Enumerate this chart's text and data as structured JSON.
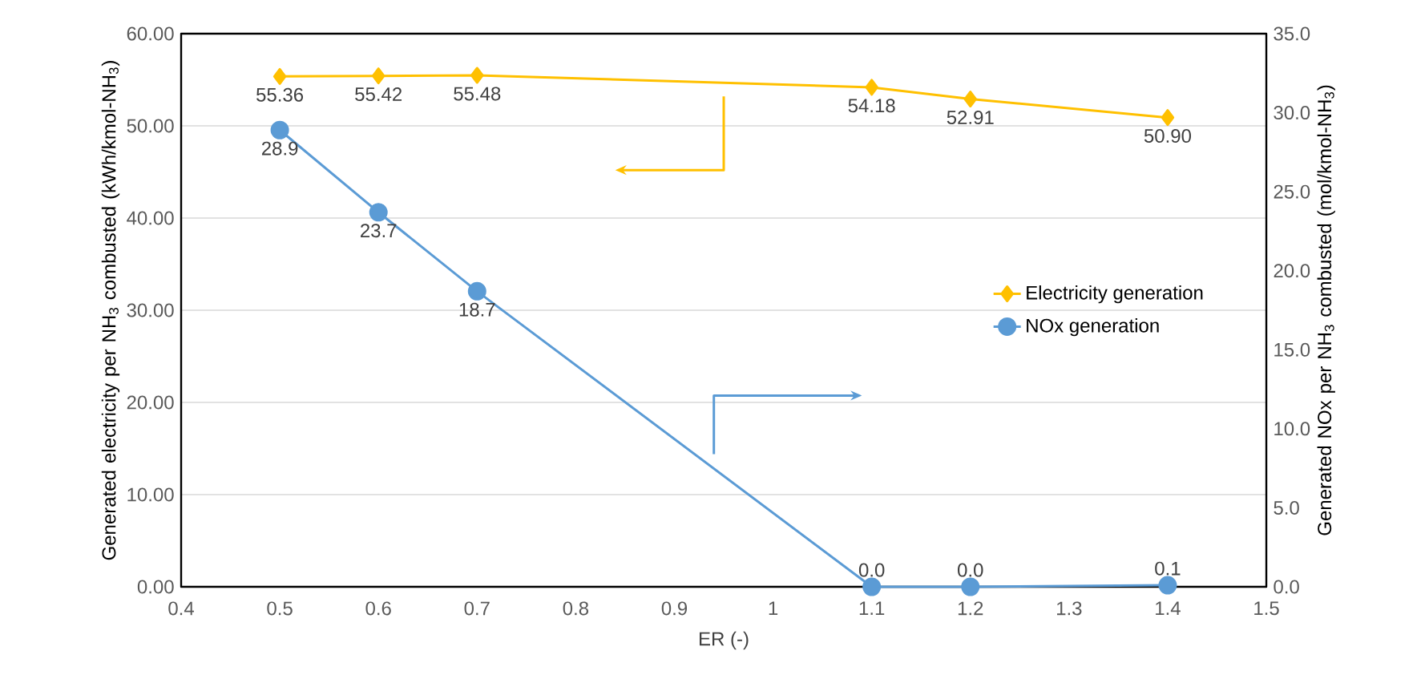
{
  "chart_data": {
    "type": "line",
    "xlabel": "ER (-)",
    "ylabel": "Generated electricity per NH$_{3}$ combusted (kWh/kmol-NH$_{3}$)",
    "y2label": "Generated NOx per NH$_{3}$ combusted (mol/kmol-NH$_{3}$)",
    "x": [
      0.5,
      0.6,
      0.7,
      1.1,
      1.2,
      1.4
    ],
    "xlim": [
      0.4,
      1.5
    ],
    "xticks": [
      0.4,
      0.5,
      0.6,
      0.7,
      0.8,
      0.9,
      1,
      1.1,
      1.2,
      1.3,
      1.4,
      1.5
    ],
    "ylim": [
      0,
      60
    ],
    "yticks": [
      {
        "value": 0,
        "label": "0.00"
      },
      {
        "value": 10,
        "label": "10.00"
      },
      {
        "value": 20,
        "label": "20.00"
      },
      {
        "value": 30,
        "label": "30.00"
      },
      {
        "value": 40,
        "label": "40.00"
      },
      {
        "value": 50,
        "label": "50.00"
      },
      {
        "value": 60,
        "label": "60.00"
      }
    ],
    "y2lim": [
      0,
      35
    ],
    "y2ticks": [
      {
        "value": 0,
        "label": "0.0"
      },
      {
        "value": 5,
        "label": "5.0"
      },
      {
        "value": 10,
        "label": "10.0"
      },
      {
        "value": 15,
        "label": "15.0"
      },
      {
        "value": 20,
        "label": "20.0"
      },
      {
        "value": 25,
        "label": "25.0"
      },
      {
        "value": 30,
        "label": "30.0"
      },
      {
        "value": 35,
        "label": "35.0"
      }
    ],
    "grid": "y",
    "legend": "right",
    "series": [
      {
        "name": "Electricity generation",
        "color": "#ffc000",
        "marker": "diamond",
        "values": [
          55.36,
          55.42,
          55.48,
          54.18,
          52.91,
          50.9
        ],
        "value_labels": [
          "55.36",
          "55.42",
          "55.48",
          "54.18",
          "52.91",
          "50.90"
        ]
      },
      {
        "name": "NOx generation",
        "color": "#5b9bd5",
        "marker": "circle",
        "axis": "y2",
        "values": [
          28.9,
          23.7,
          18.7,
          0.0,
          0.0,
          0.1
        ],
        "value_labels": [
          "28.9",
          "23.7",
          "18.7",
          "0.0",
          "0.0",
          "0.1"
        ]
      }
    ]
  }
}
